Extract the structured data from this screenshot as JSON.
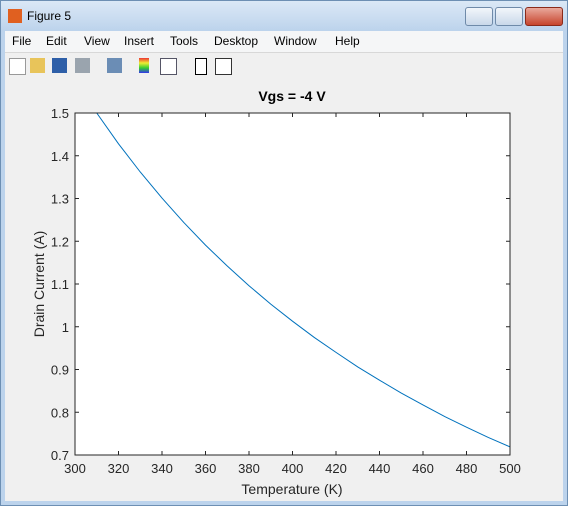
{
  "window": {
    "title": "Figure 5",
    "menu": [
      "File",
      "Edit",
      "View",
      "Insert",
      "Tools",
      "Desktop",
      "Window",
      "Help"
    ]
  },
  "chart_data": {
    "type": "line",
    "title": "Vgs = -4 V",
    "x_label": "Temperature (K)",
    "y_label": "Drain Current (A)",
    "x": [
      310,
      320,
      330,
      340,
      350,
      360,
      370,
      380,
      390,
      400,
      410,
      420,
      430,
      440,
      450,
      460,
      470,
      480,
      490,
      500
    ],
    "series": [
      {
        "name": "Drain Current",
        "color": "#0072bd",
        "values": [
          1.5,
          1.428,
          1.362,
          1.301,
          1.244,
          1.191,
          1.142,
          1.096,
          1.053,
          1.013,
          0.975,
          0.94,
          0.906,
          0.875,
          0.845,
          0.817,
          0.79,
          0.765,
          0.741,
          0.719
        ]
      }
    ],
    "xlim": [
      300,
      500
    ],
    "ylim": [
      0.7,
      1.5
    ],
    "xticks": [
      300,
      320,
      340,
      360,
      380,
      400,
      420,
      440,
      460,
      480,
      500
    ],
    "yticks": [
      0.7,
      0.8,
      0.9,
      1,
      1.1,
      1.2,
      1.3,
      1.4,
      1.5
    ]
  }
}
